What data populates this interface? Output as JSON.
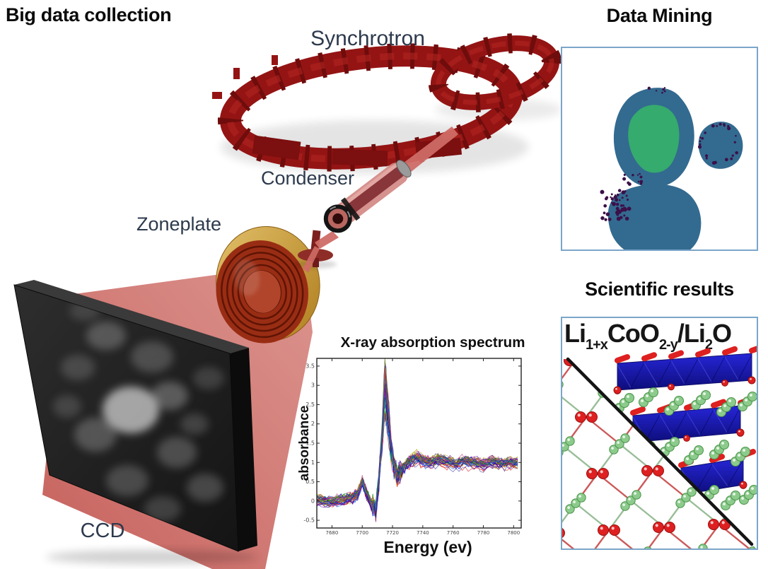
{
  "headings": {
    "big_data": "Big data collection",
    "data_mining": "Data Mining",
    "scientific_results": "Scientific results"
  },
  "equipment_labels": {
    "synchrotron": "Synchrotron",
    "condenser": "Condenser",
    "zoneplate": "Zoneplate",
    "ccd": "CCD"
  },
  "formula": {
    "segments": [
      {
        "t": "Li"
      },
      {
        "t": "1+x",
        "sub": true
      },
      {
        "t": "CoO"
      },
      {
        "t": "2-y",
        "sub": true
      },
      {
        "t": "/Li"
      },
      {
        "t": "2",
        "sub": true
      },
      {
        "t": "O"
      }
    ]
  },
  "chart_data": {
    "type": "line",
    "title": "X-ray absorption spectrum",
    "xlabel": "Energy (ev)",
    "ylabel": "absorbance",
    "xlim": [
      7670,
      7805
    ],
    "ylim": [
      -0.7,
      3.7
    ],
    "x_ticks": [
      7680,
      7700,
      7720,
      7740,
      7760,
      7780,
      7800
    ],
    "y_ticks": [
      -0.5,
      0,
      0.5,
      1,
      1.5,
      2,
      2.5,
      3,
      3.5
    ],
    "description": "Many overlaid single-pixel Co K-edge X-ray absorption spectra; flat baseline near 0, small pre-edge bump, sharp white-line peak to ~3.5, post-edge oscillations around 1",
    "n_traces": 46,
    "jitter": 0.1,
    "profile_x": [
      7670,
      7678,
      7686,
      7692,
      7697,
      7700,
      7703,
      7706,
      7709,
      7711,
      7713,
      7715,
      7717,
      7719,
      7721,
      7723,
      7726,
      7729,
      7732,
      7736,
      7740,
      7745,
      7750,
      7756,
      7762,
      7768,
      7774,
      7780,
      7786,
      7792,
      7798,
      7805
    ],
    "profile_y": [
      0.02,
      -0.05,
      0.0,
      0.05,
      0.15,
      0.5,
      0.15,
      -0.1,
      -0.25,
      0.5,
      1.8,
      3.45,
      2.6,
      1.5,
      0.9,
      0.62,
      0.78,
      0.95,
      1.1,
      1.18,
      1.1,
      1.02,
      1.12,
      1.06,
      0.98,
      1.08,
      1.02,
      0.97,
      1.05,
      1.0,
      1.03,
      1.0
    ],
    "trace_colors": [
      "#0000dd",
      "#dd0000",
      "#007700",
      "#cc00cc",
      "#00aaaa",
      "#aaaa00",
      "#5500bb",
      "#dd6600",
      "#0055dd",
      "#884400",
      "#333399",
      "#bb3377"
    ]
  },
  "data_mining_image": {
    "description": "Chemical segmentation map of three particles",
    "particle_fill": "#336a90",
    "core_fill": "#35ab6e",
    "speckle_fill": "#3c1048",
    "border": "#7ba6c9"
  },
  "scientific_image": {
    "description": "Layered LiCoO2 slabs interfaced with Li2O lattice separated by diagonal boundary",
    "slab_color_light": "#2626d8",
    "slab_color_dark": "#0d0d7a",
    "oxygen_color": "#de2020",
    "oxygen_edge": "#9a0f0f",
    "lithium_color": "#8ccb8c",
    "lithium_edge": "#4a934a",
    "divider_color": "#141414",
    "border": "#7ba6c9"
  },
  "diagram_colors": {
    "ring": "#941414",
    "ring_dark": "#6f0c0c",
    "ring_highlight": "#b02420",
    "beam": "#cf6b66",
    "beam_light": "#d98b85",
    "beam_dark": "#c2544f",
    "zoneplate_gold_light": "#e2c06a",
    "zoneplate_gold_dark": "#b07f1f",
    "zoneplate_face": "#992d14",
    "zoneplate_ring": "#5e1404",
    "ccd_dark": "#1d1d1d",
    "label_color": "#2d3a4d"
  }
}
